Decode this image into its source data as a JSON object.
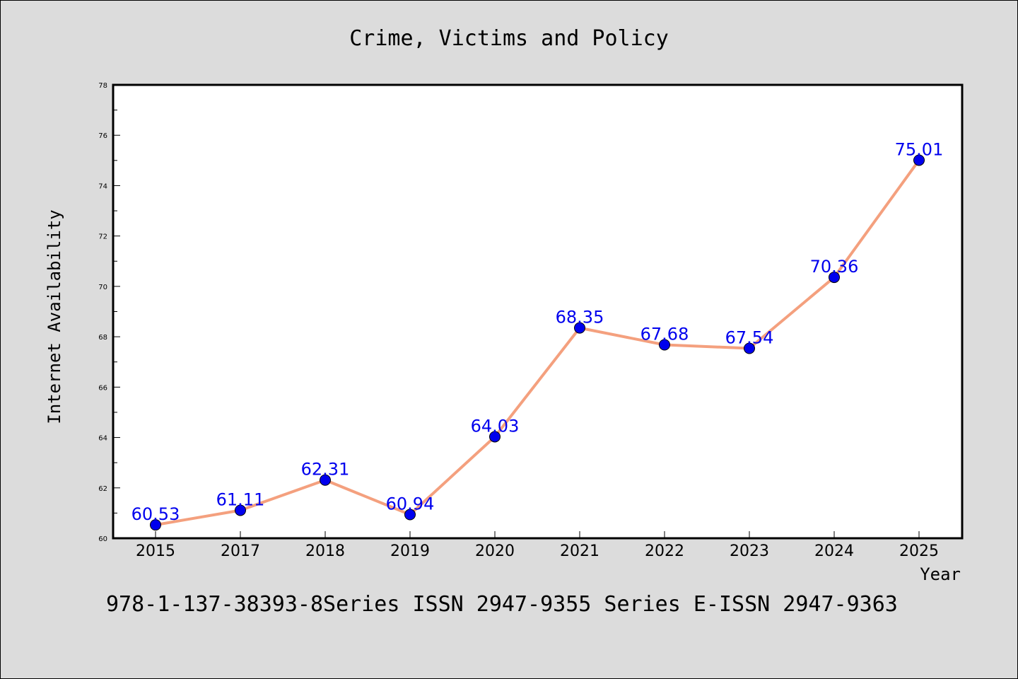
{
  "chart_data": {
    "type": "line",
    "title": "Crime, Victims and Policy",
    "xlabel": "Year",
    "ylabel": "Internet Availability",
    "categories": [
      "2015",
      "2017",
      "2018",
      "2019",
      "2020",
      "2021",
      "2022",
      "2023",
      "2024",
      "2025"
    ],
    "series": [
      {
        "values": [
          60.53,
          61.11,
          62.31,
          60.94,
          64.03,
          68.35,
          67.68,
          67.54,
          70.36,
          75.01
        ],
        "labels": [
          "60.53",
          "61.11",
          "62.31",
          "60.94",
          "64.03",
          "68.35",
          "67.68",
          "67.54",
          "70.36",
          "75.01"
        ]
      }
    ],
    "ylim": [
      60,
      78
    ],
    "yticks": [
      "60",
      "62",
      "64",
      "66",
      "68",
      "70",
      "72",
      "74",
      "76",
      "78"
    ],
    "grid": false,
    "line_color": "#f4a07e",
    "marker_color": "#0000ee",
    "label_color": "#0000ee"
  },
  "footer": {
    "text": "978-1-137-38393-8Series ISSN 2947-9355 Series E-ISSN 2947-9363"
  }
}
